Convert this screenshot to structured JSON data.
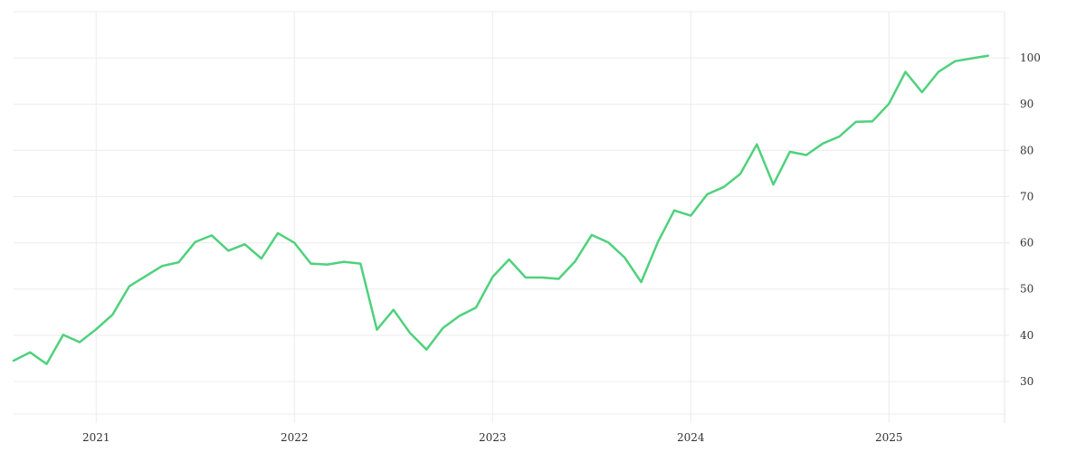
{
  "chart_data": {
    "type": "line",
    "title": "",
    "xlabel": "",
    "ylabel": "",
    "x_axis": {
      "type": "date",
      "range": [
        "2020-08",
        "2025-08"
      ],
      "tick_labels": [
        "2021",
        "2022",
        "2023",
        "2024",
        "2025"
      ]
    },
    "y_axis": {
      "position": "right",
      "range": [
        21,
        110
      ],
      "ticks": [
        30,
        40,
        50,
        60,
        70,
        80,
        90,
        100
      ]
    },
    "grid": true,
    "legend": "none",
    "colors": {
      "series": "#4fd17c",
      "grid": "#ececec",
      "text": "#333333"
    },
    "series": [
      {
        "x": [
          "2020-08",
          "2020-09",
          "2020-10",
          "2020-11",
          "2020-12",
          "2021-01",
          "2021-02",
          "2021-03",
          "2021-04",
          "2021-05",
          "2021-06",
          "2021-07",
          "2021-08",
          "2021-09",
          "2021-10",
          "2021-11",
          "2021-12",
          "2022-01",
          "2022-02",
          "2022-03",
          "2022-04",
          "2022-05",
          "2022-06",
          "2022-07",
          "2022-08",
          "2022-09",
          "2022-10",
          "2022-11",
          "2022-12",
          "2023-01",
          "2023-02",
          "2023-03",
          "2023-04",
          "2023-05",
          "2023-06",
          "2023-07",
          "2023-08",
          "2023-09",
          "2023-10",
          "2023-11",
          "2023-12",
          "2024-01",
          "2024-02",
          "2024-03",
          "2024-04",
          "2024-05",
          "2024-06",
          "2024-07",
          "2024-08",
          "2024-09",
          "2024-10",
          "2024-11",
          "2024-12",
          "2025-01",
          "2025-02",
          "2025-03",
          "2025-04",
          "2025-05",
          "2025-06",
          "2025-07"
        ],
        "values": [
          34.5,
          36.3,
          33.8,
          40.1,
          38.5,
          41.3,
          44.5,
          50.6,
          52.8,
          55,
          55.8,
          60.2,
          61.6,
          58.3,
          59.7,
          56.6,
          62.1,
          60,
          55.5,
          55.3,
          55.9,
          55.5,
          41.2,
          45.5,
          40.5,
          36.9,
          41.6,
          44.2,
          46,
          52.6,
          56.4,
          52.5,
          52.5,
          52.2,
          56,
          61.7,
          60.1,
          56.8,
          51.5,
          60.1,
          67,
          65.9,
          70.5,
          72.1,
          74.9,
          81.3,
          72.6,
          79.7,
          79,
          81.5,
          83,
          86.2,
          86.3,
          90.1,
          97,
          92.6,
          97,
          99.3,
          99.9,
          100.5
        ]
      }
    ]
  }
}
